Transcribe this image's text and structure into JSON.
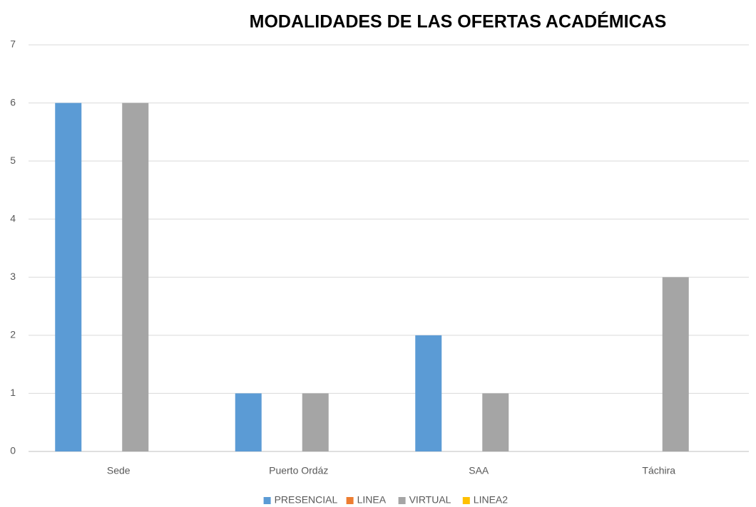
{
  "chart_data": {
    "type": "bar",
    "title": "MODALIDADES DE LAS OFERTAS ACADÉMICAS",
    "categories": [
      "Sede",
      "Puerto Ordáz",
      "SAA",
      "Táchira"
    ],
    "series": [
      {
        "name": "PRESENCIAL",
        "color": "#5b9bd5",
        "values": [
          6,
          1,
          2,
          0
        ]
      },
      {
        "name": "LINEA",
        "color": "#ed7d31",
        "values": [
          0,
          0,
          0,
          0
        ]
      },
      {
        "name": "VIRTUAL",
        "color": "#a5a5a5",
        "values": [
          6,
          1,
          1,
          3
        ]
      },
      {
        "name": "LINEA2",
        "color": "#ffc000",
        "values": [
          0,
          0,
          0,
          0
        ]
      }
    ],
    "ylim": [
      0,
      7
    ],
    "yticks": [
      0,
      1,
      2,
      3,
      4,
      5,
      6,
      7
    ],
    "grid": true,
    "legend": "bottom"
  }
}
